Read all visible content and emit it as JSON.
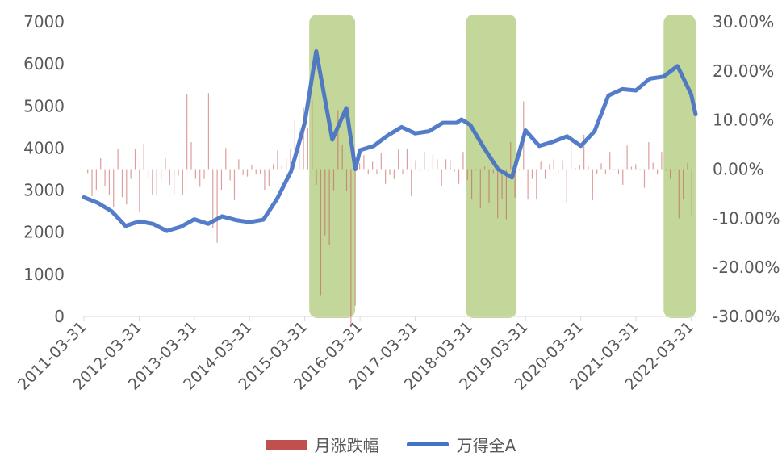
{
  "chart_data": {
    "type": "line",
    "x_ticks": [
      "2011-03-31",
      "2012-03-31",
      "2013-03-31",
      "2014-03-31",
      "2015-03-31",
      "2016-03-31",
      "2017-03-31",
      "2018-03-31",
      "2019-03-31",
      "2020-03-31",
      "2021-03-31",
      "2022-03-31"
    ],
    "y_left": {
      "ticks": [
        "7000",
        "6000",
        "5000",
        "4000",
        "3000",
        "2000",
        "1000",
        "0"
      ],
      "range": [
        0,
        7000
      ]
    },
    "y_right": {
      "ticks": [
        "30.00%",
        "20.00%",
        "10.00%",
        "0.00%",
        "-10.00%",
        "-20.00%",
        "-30.00%"
      ],
      "range": [
        -30,
        30
      ]
    },
    "highlight_periods": [
      {
        "start": "2015-04-30",
        "end": "2016-02-28"
      },
      {
        "start": "2018-02-28",
        "end": "2019-01-31"
      },
      {
        "start": "2021-09-30",
        "end": "2022-04-30"
      }
    ],
    "highlight_color": "#c4d79b",
    "series": [
      {
        "name": "月涨跌幅",
        "kind": "bar",
        "axis": "right",
        "color": "#c0504d",
        "values": [
          -0.8,
          -5.5,
          -4.2,
          2.2,
          -3.5,
          -5.2,
          -7.8,
          4.2,
          -5.7,
          -7.2,
          -2.0,
          4.2,
          -8.8,
          5.1,
          -2.0,
          -5.2,
          -5.2,
          -2.3,
          2.2,
          -3.2,
          -5.2,
          -1.3,
          -5.2,
          15.2,
          5.5,
          -2.0,
          -3.6,
          -2.0,
          15.5,
          -12.0,
          -15.0,
          -4.2,
          4.3,
          -2.3,
          -6.3,
          2.0,
          -1.2,
          -1.5,
          0.8,
          -1.1,
          -1.0,
          -4.2,
          -3.5,
          1.0,
          3.8,
          0.8,
          2.2,
          4.0,
          10.0,
          8.5,
          12.5,
          8.5,
          14.2,
          -3.2,
          -25.8,
          -13.5,
          -15.5,
          -4.3,
          12.0,
          5.0,
          -4.5,
          -32.2,
          -27.8,
          1.2,
          2.8,
          -1.0,
          1.5,
          -1.0,
          3.2,
          -3.0,
          -1.2,
          -2.0,
          4.0,
          -1.0,
          4.2,
          -5.5,
          1.8,
          -0.5,
          3.5,
          -0.3,
          3.0,
          2.0,
          -3.5,
          2.0,
          1.8,
          -0.5,
          -3.0,
          3.5,
          -2.2,
          -6.2,
          -0.2,
          -8.0,
          0.5,
          -6.8,
          -0.8,
          -10.0,
          -6.0,
          -10.2,
          5.5,
          -5.8,
          -0.2,
          13.8,
          -6.2,
          -2.0,
          -6.2,
          1.5,
          -2.0,
          1.0,
          2.0,
          -1.0,
          1.8,
          -6.8,
          7.0,
          0.2,
          0.8,
          7.0,
          0.5,
          -6.3,
          -1.0,
          1.2,
          -1.0,
          3.5,
          -0.2,
          -1.0,
          -3.2,
          4.8,
          0.5,
          1.0,
          -0.2,
          -3.8,
          5.5,
          1.3,
          -1.1,
          3.5,
          -0.3,
          -2.0,
          -0.3,
          -10.0,
          -6.2,
          1.2,
          -9.7
        ]
      },
      {
        "name": "万得全A",
        "kind": "line",
        "axis": "left",
        "color": "#4472c4",
        "points": [
          [
            "2011-03-31",
            2830
          ],
          [
            "2011-06-30",
            2700
          ],
          [
            "2011-09-30",
            2500
          ],
          [
            "2011-12-31",
            2150
          ],
          [
            "2012-03-31",
            2260
          ],
          [
            "2012-06-30",
            2200
          ],
          [
            "2012-09-30",
            2030
          ],
          [
            "2012-12-31",
            2130
          ],
          [
            "2013-03-31",
            2310
          ],
          [
            "2013-06-30",
            2200
          ],
          [
            "2013-09-30",
            2380
          ],
          [
            "2013-12-31",
            2290
          ],
          [
            "2014-03-31",
            2240
          ],
          [
            "2014-06-30",
            2300
          ],
          [
            "2014-09-30",
            2800
          ],
          [
            "2014-12-31",
            3450
          ],
          [
            "2015-03-31",
            4600
          ],
          [
            "2015-06-15",
            6300
          ],
          [
            "2015-09-30",
            4200
          ],
          [
            "2015-12-31",
            4950
          ],
          [
            "2016-02-29",
            3500
          ],
          [
            "2016-03-31",
            3950
          ],
          [
            "2016-06-30",
            4050
          ],
          [
            "2016-09-30",
            4300
          ],
          [
            "2016-12-31",
            4500
          ],
          [
            "2017-03-31",
            4350
          ],
          [
            "2017-06-30",
            4400
          ],
          [
            "2017-09-30",
            4600
          ],
          [
            "2017-12-31",
            4600
          ],
          [
            "2018-01-31",
            4680
          ],
          [
            "2018-03-31",
            4550
          ],
          [
            "2018-06-30",
            4000
          ],
          [
            "2018-09-30",
            3500
          ],
          [
            "2018-12-31",
            3300
          ],
          [
            "2019-03-31",
            4420
          ],
          [
            "2019-06-30",
            4050
          ],
          [
            "2019-09-30",
            4150
          ],
          [
            "2019-12-31",
            4280
          ],
          [
            "2020-03-31",
            4050
          ],
          [
            "2020-06-30",
            4400
          ],
          [
            "2020-09-30",
            5250
          ],
          [
            "2020-12-31",
            5400
          ],
          [
            "2021-03-31",
            5370
          ],
          [
            "2021-06-30",
            5650
          ],
          [
            "2021-09-30",
            5700
          ],
          [
            "2021-12-31",
            5950
          ],
          [
            "2022-03-31",
            5280
          ],
          [
            "2022-04-30",
            4800
          ]
        ]
      }
    ]
  },
  "legend": {
    "items": [
      {
        "label": "月涨跌幅",
        "color": "#c0504d"
      },
      {
        "label": "万得全A",
        "color": "#4472c4"
      }
    ]
  }
}
